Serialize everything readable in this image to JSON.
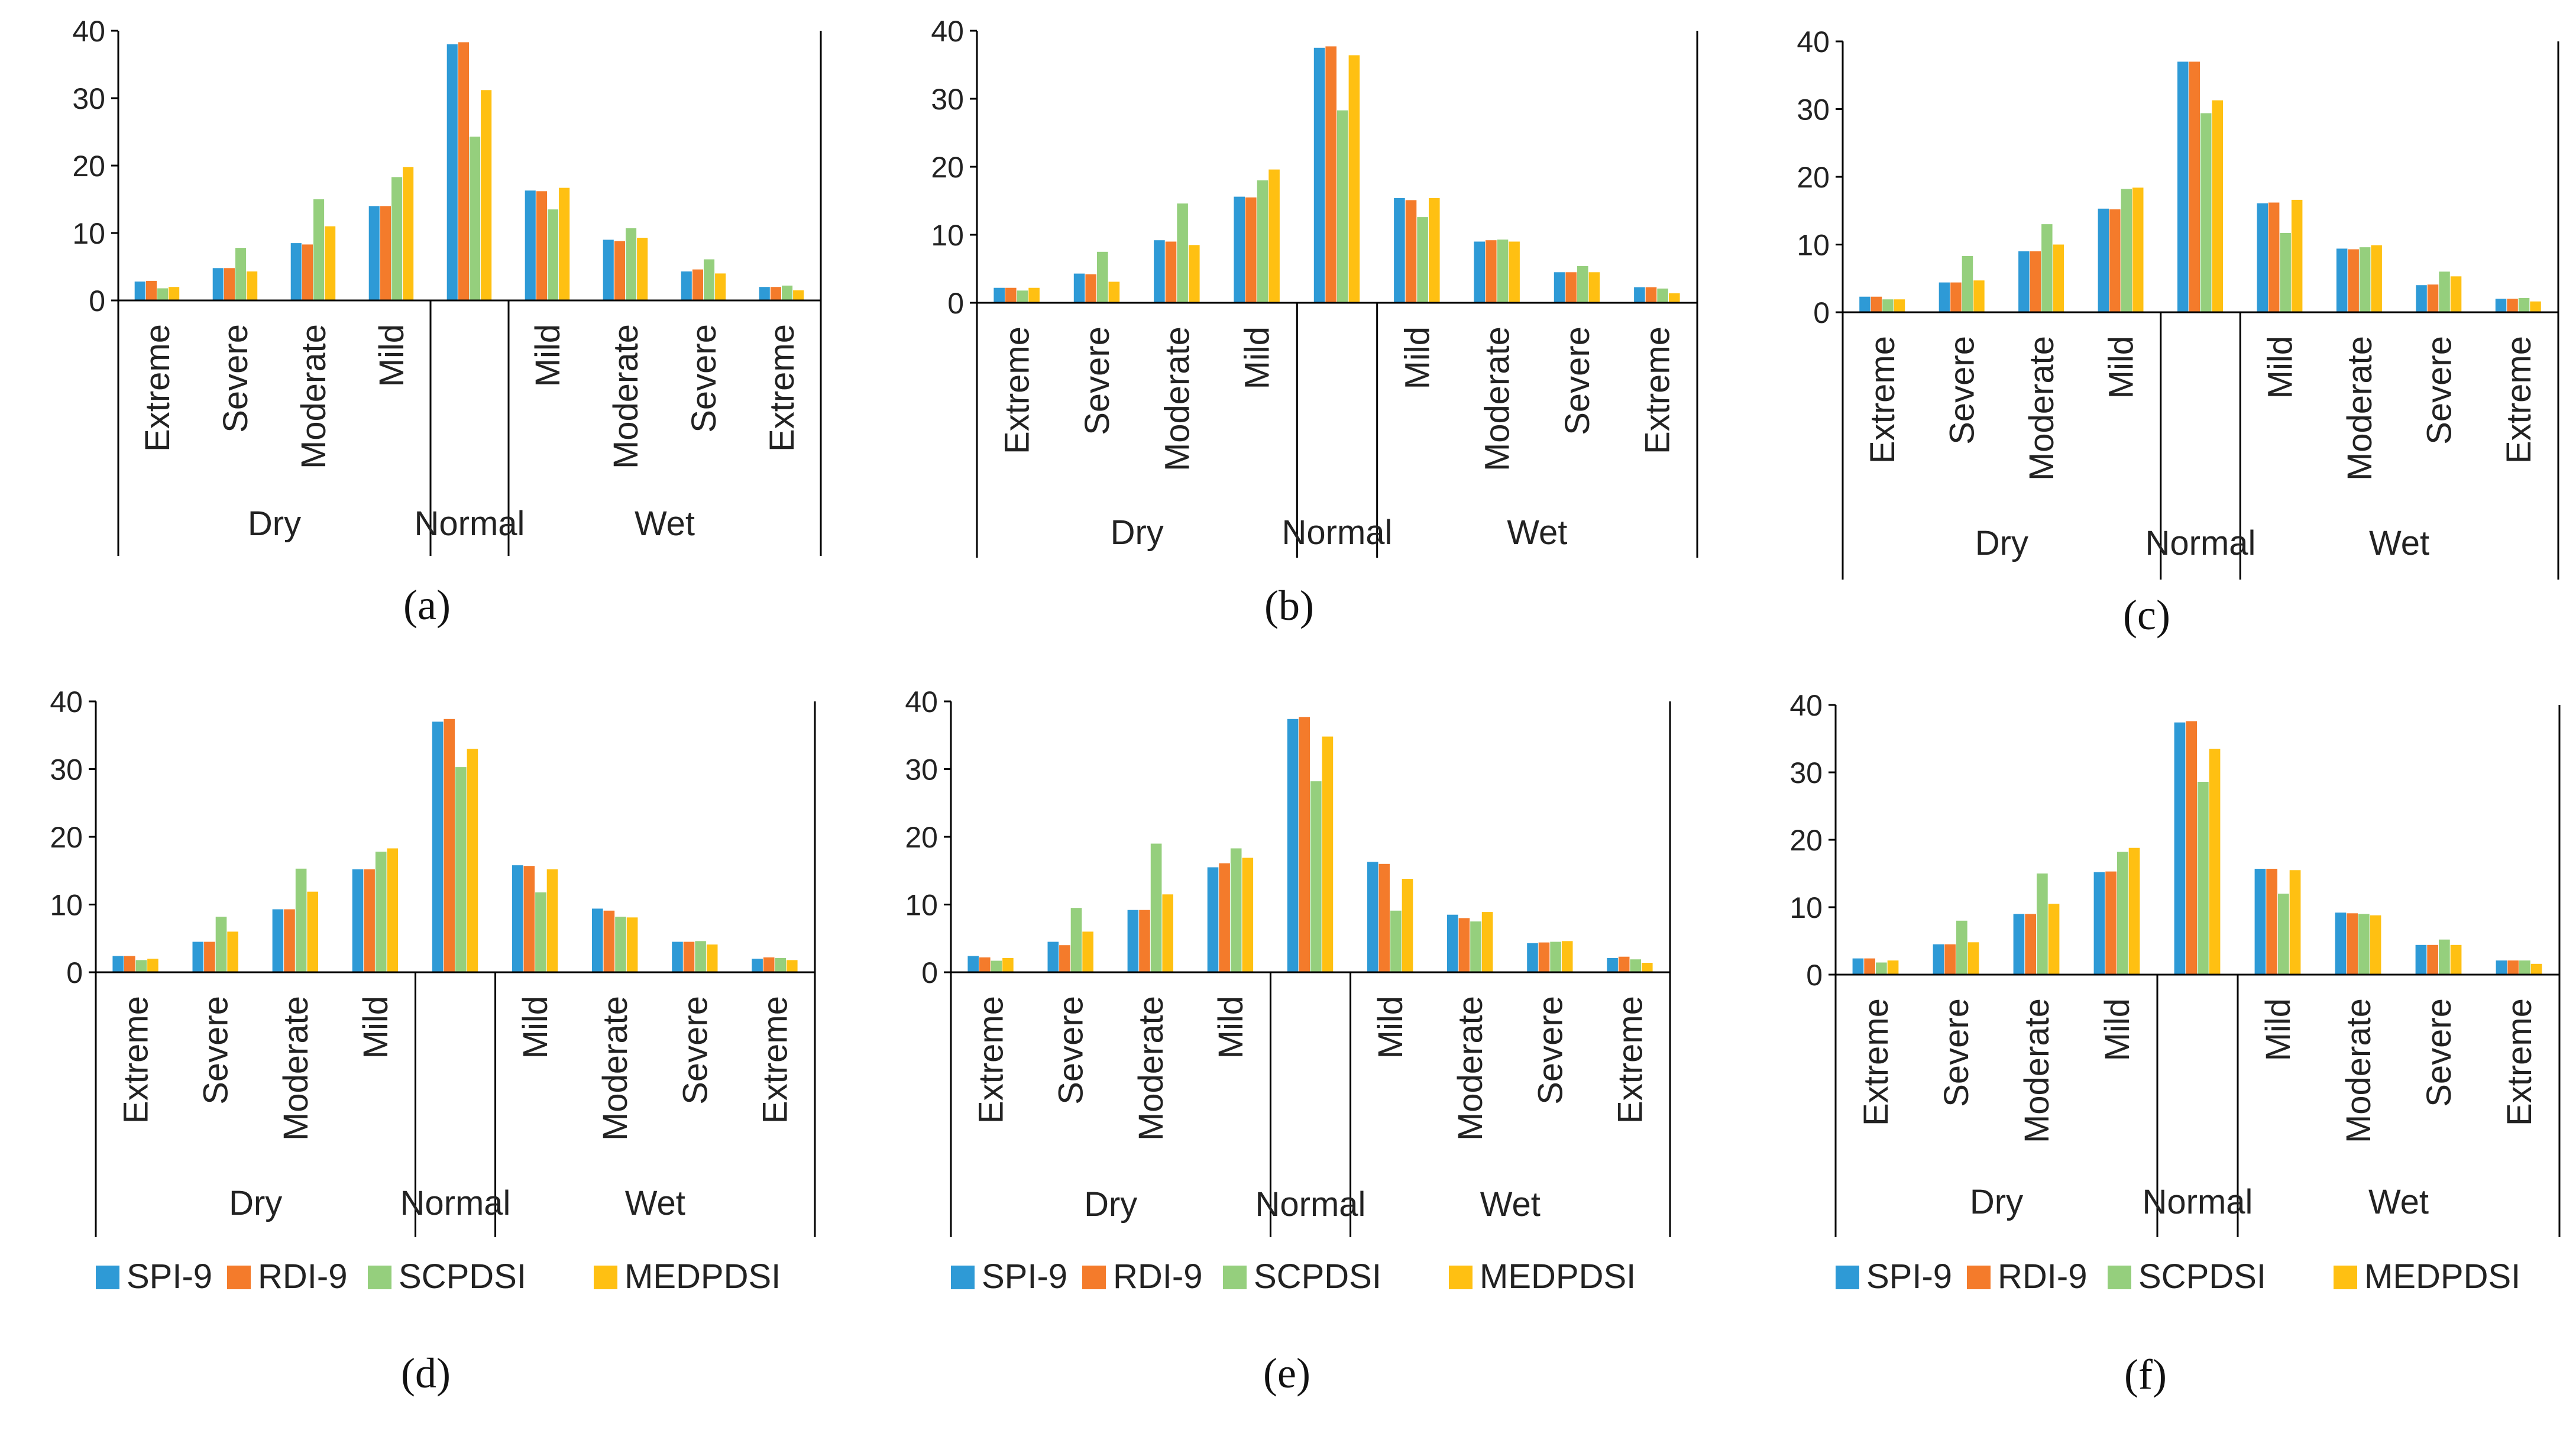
{
  "colors": {
    "SPI-9": "#2E9AD6",
    "RDI-9": "#F47B2B",
    "SCPDSI": "#95CF7D",
    "MEDPDSI": "#FFC012",
    "axis": "#000000"
  },
  "chart_data": [
    {
      "type": "bar",
      "caption": "(a)",
      "categories": [
        "Extreme",
        "Severe",
        "Moderate",
        "Mild",
        "",
        "Mild",
        "Moderate",
        "Severe",
        "Extreme"
      ],
      "groups": [
        "Dry",
        "Normal",
        "Wet"
      ],
      "y_ticks": [
        "0",
        "10",
        "20",
        "30",
        "40"
      ],
      "ylim": [
        0,
        40
      ],
      "legend": [],
      "series": [
        {
          "name": "SPI-9",
          "values": [
            2.8,
            4.8,
            8.5,
            14.0,
            38.0,
            16.3,
            9.0,
            4.3,
            2.0
          ]
        },
        {
          "name": "RDI-9",
          "values": [
            2.9,
            4.8,
            8.3,
            14.0,
            38.3,
            16.2,
            8.8,
            4.6,
            2.0
          ]
        },
        {
          "name": "SCPDSI",
          "values": [
            1.8,
            7.8,
            15.0,
            18.3,
            24.3,
            13.5,
            10.7,
            6.1,
            2.2
          ]
        },
        {
          "name": "MEDPDSI",
          "values": [
            2.0,
            4.3,
            11.0,
            19.8,
            31.2,
            16.7,
            9.3,
            4.0,
            1.5
          ]
        }
      ]
    },
    {
      "type": "bar",
      "caption": "(b)",
      "categories": [
        "Extreme",
        "Severe",
        "Moderate",
        "Mild",
        "",
        "Mild",
        "Moderate",
        "Severe",
        "Extreme"
      ],
      "groups": [
        "Dry",
        "Normal",
        "Wet"
      ],
      "y_ticks": [
        "0",
        "10",
        "20",
        "30",
        "40"
      ],
      "ylim": [
        0,
        40
      ],
      "legend": [],
      "series": [
        {
          "name": "SPI-9",
          "values": [
            2.2,
            4.3,
            9.2,
            15.6,
            37.5,
            15.4,
            9.0,
            4.5,
            2.3
          ]
        },
        {
          "name": "RDI-9",
          "values": [
            2.2,
            4.2,
            9.0,
            15.5,
            37.7,
            15.1,
            9.2,
            4.5,
            2.3
          ]
        },
        {
          "name": "SCPDSI",
          "values": [
            1.8,
            7.5,
            14.6,
            18.0,
            28.3,
            12.6,
            9.3,
            5.4,
            2.1
          ]
        },
        {
          "name": "MEDPDSI",
          "values": [
            2.2,
            3.1,
            8.5,
            19.6,
            36.4,
            15.4,
            9.0,
            4.5,
            1.4
          ]
        }
      ]
    },
    {
      "type": "bar",
      "caption": "(c)",
      "categories": [
        "Extreme",
        "Severe",
        "Moderate",
        "Mild",
        "",
        "Mild",
        "Moderate",
        "Severe",
        "Extreme"
      ],
      "groups": [
        "Dry",
        "Normal",
        "Wet"
      ],
      "y_ticks": [
        "0",
        "10",
        "20",
        "30",
        "40"
      ],
      "ylim": [
        0,
        40
      ],
      "legend": [],
      "series": [
        {
          "name": "SPI-9",
          "values": [
            2.3,
            4.4,
            9.0,
            15.3,
            37.0,
            16.1,
            9.4,
            4.0,
            2.0
          ]
        },
        {
          "name": "RDI-9",
          "values": [
            2.3,
            4.4,
            9.0,
            15.2,
            37.0,
            16.2,
            9.3,
            4.1,
            2.0
          ]
        },
        {
          "name": "SCPDSI",
          "values": [
            1.9,
            8.3,
            13.0,
            18.2,
            29.4,
            11.7,
            9.6,
            6.0,
            2.1
          ]
        },
        {
          "name": "MEDPDSI",
          "values": [
            1.9,
            4.7,
            10.0,
            18.4,
            31.3,
            16.6,
            9.9,
            5.3,
            1.6
          ]
        }
      ]
    },
    {
      "type": "bar",
      "caption": "(d)",
      "categories": [
        "Extreme",
        "Severe",
        "Moderate",
        "Mild",
        "",
        "Mild",
        "Moderate",
        "Severe",
        "Extreme"
      ],
      "groups": [
        "Dry",
        "Normal",
        "Wet"
      ],
      "y_ticks": [
        "0",
        "10",
        "20",
        "30",
        "40"
      ],
      "ylim": [
        0,
        40
      ],
      "legend": [
        "SPI-9",
        "RDI-9",
        "SCPDSI",
        "MEDPDSI"
      ],
      "series": [
        {
          "name": "SPI-9",
          "values": [
            2.4,
            4.5,
            9.3,
            15.2,
            37.0,
            15.8,
            9.4,
            4.5,
            2.0
          ]
        },
        {
          "name": "RDI-9",
          "values": [
            2.4,
            4.5,
            9.3,
            15.2,
            37.4,
            15.7,
            9.1,
            4.5,
            2.2
          ]
        },
        {
          "name": "SCPDSI",
          "values": [
            1.8,
            8.2,
            15.3,
            17.8,
            30.3,
            11.8,
            8.2,
            4.6,
            2.1
          ]
        },
        {
          "name": "MEDPDSI",
          "values": [
            2.0,
            6.0,
            11.9,
            18.3,
            33.0,
            15.2,
            8.1,
            4.1,
            1.8
          ]
        }
      ]
    },
    {
      "type": "bar",
      "caption": "(e)",
      "categories": [
        "Extreme",
        "Severe",
        "Moderate",
        "Mild",
        "",
        "Mild",
        "Moderate",
        "Severe",
        "Extreme"
      ],
      "groups": [
        "Dry",
        "Normal",
        "Wet"
      ],
      "y_ticks": [
        "0",
        "10",
        "20",
        "30",
        "40"
      ],
      "ylim": [
        0,
        40
      ],
      "legend": [
        "SPI-9",
        "RDI-9",
        "SCPDSI",
        "MEDPDSI"
      ],
      "series": [
        {
          "name": "SPI-9",
          "values": [
            2.4,
            4.5,
            9.2,
            15.5,
            37.4,
            16.3,
            8.5,
            4.3,
            2.1
          ]
        },
        {
          "name": "RDI-9",
          "values": [
            2.2,
            4.0,
            9.2,
            16.1,
            37.7,
            16.0,
            8.0,
            4.4,
            2.3
          ]
        },
        {
          "name": "SCPDSI",
          "values": [
            1.7,
            9.5,
            19.0,
            18.3,
            28.2,
            9.1,
            7.5,
            4.5,
            1.9
          ]
        },
        {
          "name": "MEDPDSI",
          "values": [
            2.1,
            6.0,
            11.5,
            16.9,
            34.8,
            13.8,
            8.9,
            4.6,
            1.4
          ]
        }
      ]
    },
    {
      "type": "bar",
      "caption": "(f)",
      "categories": [
        "Extreme",
        "Severe",
        "Moderate",
        "Mild",
        "",
        "Mild",
        "Moderate",
        "Severe",
        "Extreme"
      ],
      "groups": [
        "Dry",
        "Normal",
        "Wet"
      ],
      "y_ticks": [
        "0",
        "10",
        "20",
        "30",
        "40"
      ],
      "ylim": [
        0,
        40
      ],
      "legend": [
        "SPI-9",
        "RDI-9",
        "SCPDSI",
        "MEDPDSI"
      ],
      "series": [
        {
          "name": "SPI-9",
          "values": [
            2.4,
            4.5,
            9.0,
            15.2,
            37.4,
            15.7,
            9.2,
            4.4,
            2.1
          ]
        },
        {
          "name": "RDI-9",
          "values": [
            2.4,
            4.5,
            9.0,
            15.3,
            37.6,
            15.7,
            9.1,
            4.4,
            2.1
          ]
        },
        {
          "name": "SCPDSI",
          "values": [
            1.8,
            8.0,
            15.0,
            18.2,
            28.6,
            12.0,
            9.0,
            5.2,
            2.1
          ]
        },
        {
          "name": "MEDPDSI",
          "values": [
            2.1,
            4.8,
            10.5,
            18.8,
            33.5,
            15.5,
            8.8,
            4.4,
            1.6
          ]
        }
      ]
    }
  ]
}
